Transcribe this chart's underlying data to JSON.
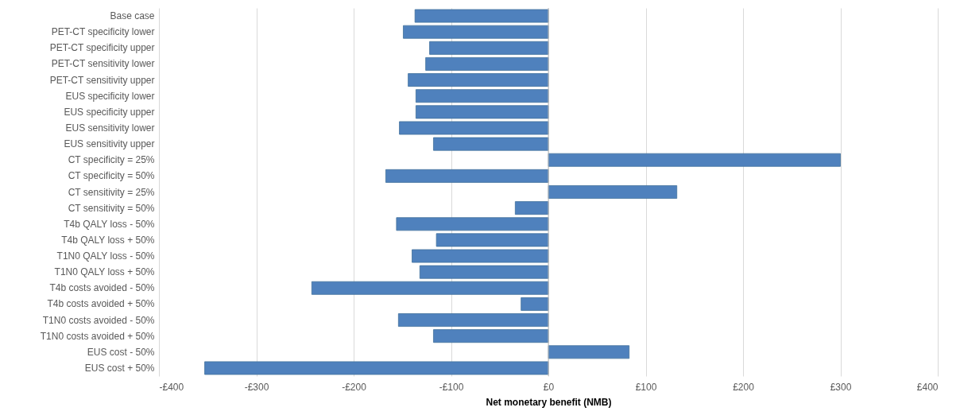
{
  "chart_data": {
    "type": "bar",
    "orientation": "horizontal",
    "xlabel": "Net monetary benefit (NMB)",
    "categories": [
      "Base case",
      "PET-CT specificity lower",
      "PET-CT specificity upper",
      "PET-CT sensitivity lower",
      "PET-CT sensitivity upper",
      "EUS specificity lower",
      "EUS specificity upper",
      "EUS sensitivity lower",
      "EUS sensitivity upper",
      "CT specificity = 25%",
      "CT specificity = 50%",
      "CT sensitivity = 25%",
      "CT sensitivity = 50%",
      "T4b QALY loss - 50%",
      "T4b QALY loss + 50%",
      "T1N0 QALY loss - 50%",
      "T1N0 QALY loss + 50%",
      "T4b costs avoided - 50%",
      "T4b costs avoided + 50%",
      "T1N0 costs avoided - 50%",
      "T1N0 costs avoided + 50%",
      "EUS cost - 50%",
      "EUS cost + 50%"
    ],
    "values": [
      -137,
      -149,
      -122,
      -126,
      -144,
      -136,
      -136,
      -153,
      -118,
      300,
      -167,
      132,
      -34,
      -156,
      -115,
      -140,
      -132,
      -243,
      -28,
      -154,
      -118,
      83,
      -353
    ],
    "color": "#4f81bd",
    "xlim": [
      -400,
      400
    ],
    "xticks": [
      {
        "value": -400,
        "label": "-£400"
      },
      {
        "value": -300,
        "label": "-£300"
      },
      {
        "value": -200,
        "label": "-£200"
      },
      {
        "value": -100,
        "label": "-£100"
      },
      {
        "value": 0,
        "label": "£0"
      },
      {
        "value": 100,
        "label": "£100"
      },
      {
        "value": 200,
        "label": "£200"
      },
      {
        "value": 300,
        "label": "£300"
      },
      {
        "value": 400,
        "label": "£400"
      }
    ],
    "grid": "x"
  }
}
